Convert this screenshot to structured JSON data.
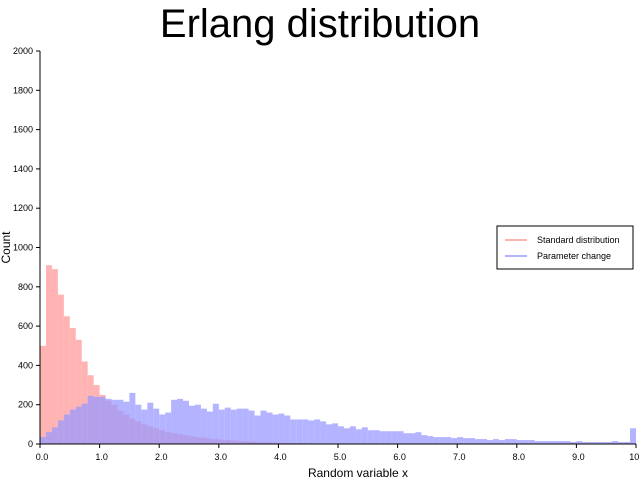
{
  "chart_data": {
    "type": "bar",
    "title": "Erlang distribution",
    "xlabel": "Random variable x",
    "ylabel": "Count",
    "xlim": [
      0,
      10
    ],
    "ylim": [
      0,
      2000
    ],
    "x_ticks": [
      "0.0",
      "1.0",
      "2.0",
      "3.0",
      "4.0",
      "5.0",
      "6.0",
      "7.0",
      "8.0",
      "9.0",
      "10.0"
    ],
    "y_ticks": [
      "0",
      "200",
      "400",
      "600",
      "800",
      "1000",
      "1200",
      "1400",
      "1600",
      "1800",
      "2000"
    ],
    "grid": false,
    "legend_position": "right",
    "bin_width": 0.1,
    "bin_starts": [
      0.0,
      0.1,
      0.2,
      0.3,
      0.4,
      0.5,
      0.6,
      0.7,
      0.8,
      0.9,
      1.0,
      1.1,
      1.2,
      1.3,
      1.4,
      1.5,
      1.6,
      1.7,
      1.8,
      1.9,
      2.0,
      2.1,
      2.2,
      2.3,
      2.4,
      2.5,
      2.6,
      2.7,
      2.8,
      2.9,
      3.0,
      3.1,
      3.2,
      3.3,
      3.4,
      3.5,
      3.6,
      3.7,
      3.8,
      3.9,
      4.0,
      4.1,
      4.2,
      4.3,
      4.4,
      4.5,
      4.6,
      4.7,
      4.8,
      4.9,
      5.0,
      5.1,
      5.2,
      5.3,
      5.4,
      5.5,
      5.6,
      5.7,
      5.8,
      5.9,
      6.0,
      6.1,
      6.2,
      6.3,
      6.4,
      6.5,
      6.6,
      6.7,
      6.8,
      6.9,
      7.0,
      7.1,
      7.2,
      7.3,
      7.4,
      7.5,
      7.6,
      7.7,
      7.8,
      7.9,
      8.0,
      8.1,
      8.2,
      8.3,
      8.4,
      8.5,
      8.6,
      8.7,
      8.8,
      8.9,
      9.0,
      9.1,
      9.2,
      9.3,
      9.4,
      9.5,
      9.6,
      9.7,
      9.8,
      9.9
    ],
    "series": [
      {
        "name": "Standard distribution",
        "color": "#ff9999",
        "values": [
          500,
          910,
          890,
          760,
          650,
          590,
          530,
          420,
          350,
          300,
          250,
          220,
          200,
          170,
          150,
          130,
          115,
          100,
          90,
          80,
          70,
          60,
          55,
          50,
          45,
          40,
          35,
          32,
          28,
          25,
          22,
          20,
          18,
          16,
          14,
          12,
          10,
          9,
          8,
          7,
          6,
          5,
          5,
          4,
          4,
          3,
          3,
          2,
          2,
          2,
          1,
          1,
          1,
          1,
          1,
          0,
          0,
          0,
          0,
          0,
          0,
          0,
          0,
          0,
          0,
          0,
          0,
          0,
          0,
          0,
          0,
          0,
          0,
          0,
          0,
          0,
          0,
          0,
          0,
          0,
          0,
          0,
          0,
          0,
          0,
          0,
          0,
          0,
          0,
          0,
          0,
          0,
          0,
          0,
          0,
          0,
          0,
          0,
          0,
          0
        ]
      },
      {
        "name": "Parameter change",
        "color": "#9999ff",
        "values": [
          35,
          60,
          85,
          120,
          150,
          175,
          190,
          205,
          245,
          240,
          240,
          230,
          225,
          225,
          215,
          260,
          200,
          175,
          210,
          180,
          150,
          160,
          225,
          230,
          220,
          195,
          200,
          180,
          165,
          205,
          175,
          185,
          175,
          180,
          180,
          170,
          145,
          170,
          160,
          150,
          155,
          145,
          125,
          125,
          125,
          120,
          125,
          115,
          100,
          105,
          90,
          80,
          90,
          75,
          85,
          70,
          70,
          65,
          65,
          65,
          65,
          55,
          55,
          60,
          45,
          40,
          35,
          35,
          35,
          30,
          35,
          30,
          30,
          25,
          25,
          20,
          25,
          20,
          25,
          25,
          20,
          20,
          20,
          15,
          15,
          15,
          15,
          15,
          15,
          10,
          15,
          10,
          10,
          10,
          10,
          10,
          15,
          10,
          10,
          80
        ]
      }
    ]
  }
}
